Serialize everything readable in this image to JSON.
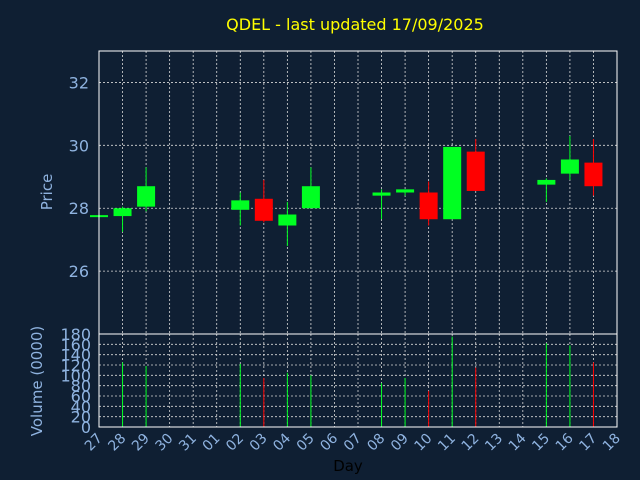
{
  "chart_data": {
    "type": "candlestick",
    "title": "QDEL - last updated 17/09/2025",
    "xlabel": "Day",
    "x_ticks": [
      "27",
      "28",
      "29",
      "30",
      "31",
      "01",
      "02",
      "03",
      "04",
      "05",
      "06",
      "07",
      "08",
      "09",
      "10",
      "11",
      "12",
      "13",
      "14",
      "15",
      "16",
      "17",
      "18"
    ],
    "price_panel": {
      "ylabel": "Price",
      "ylim": [
        24.0,
        33.0
      ],
      "yticks": [
        26,
        28,
        30,
        32
      ],
      "grid": true
    },
    "volume_panel": {
      "ylabel": "Volume (0000)",
      "ylim": [
        0,
        180
      ],
      "yticks": [
        0,
        20,
        40,
        60,
        80,
        100,
        120,
        140,
        160,
        180
      ],
      "grid": true
    },
    "candles": [
      {
        "day": "27",
        "open": 27.75,
        "high": 27.8,
        "low": 27.7,
        "close": 27.78,
        "volume": 0
      },
      {
        "day": "28",
        "open": 27.75,
        "high": 28.05,
        "low": 27.25,
        "close": 28.0,
        "volume": 125
      },
      {
        "day": "29",
        "open": 28.05,
        "high": 29.3,
        "low": 27.9,
        "close": 28.7,
        "volume": 118
      },
      {
        "day": "02",
        "open": 27.95,
        "high": 28.5,
        "low": 27.45,
        "close": 28.25,
        "volume": 122
      },
      {
        "day": "03",
        "open": 28.3,
        "high": 28.9,
        "low": 27.55,
        "close": 27.6,
        "volume": 95
      },
      {
        "day": "04",
        "open": 27.45,
        "high": 28.2,
        "low": 26.8,
        "close": 27.8,
        "volume": 105
      },
      {
        "day": "05",
        "open": 28.0,
        "high": 29.3,
        "low": 28.0,
        "close": 28.7,
        "volume": 100
      },
      {
        "day": "08",
        "open": 28.4,
        "high": 28.6,
        "low": 27.65,
        "close": 28.5,
        "volume": 85
      },
      {
        "day": "09",
        "open": 28.5,
        "high": 28.6,
        "low": 28.4,
        "close": 28.6,
        "volume": 95
      },
      {
        "day": "10",
        "open": 28.5,
        "high": 28.85,
        "low": 27.45,
        "close": 27.65,
        "volume": 70
      },
      {
        "day": "11",
        "open": 27.65,
        "high": 29.95,
        "low": 27.65,
        "close": 29.95,
        "volume": 175
      },
      {
        "day": "12",
        "open": 29.8,
        "high": 30.2,
        "low": 28.55,
        "close": 28.55,
        "volume": 115
      },
      {
        "day": "15",
        "open": 28.75,
        "high": 28.95,
        "low": 28.2,
        "close": 28.9,
        "volume": 162
      },
      {
        "day": "16",
        "open": 29.1,
        "high": 30.3,
        "low": 28.9,
        "close": 29.55,
        "volume": 158
      },
      {
        "day": "17",
        "open": 29.45,
        "high": 30.2,
        "low": 28.4,
        "close": 28.7,
        "volume": 125
      }
    ],
    "colors": {
      "background": "#0f1f33",
      "up": "#00ff22",
      "down": "#ff0000",
      "grid": "#d8d8d8",
      "axis_text": "#8fb3e0",
      "title": "#ffff00"
    }
  }
}
